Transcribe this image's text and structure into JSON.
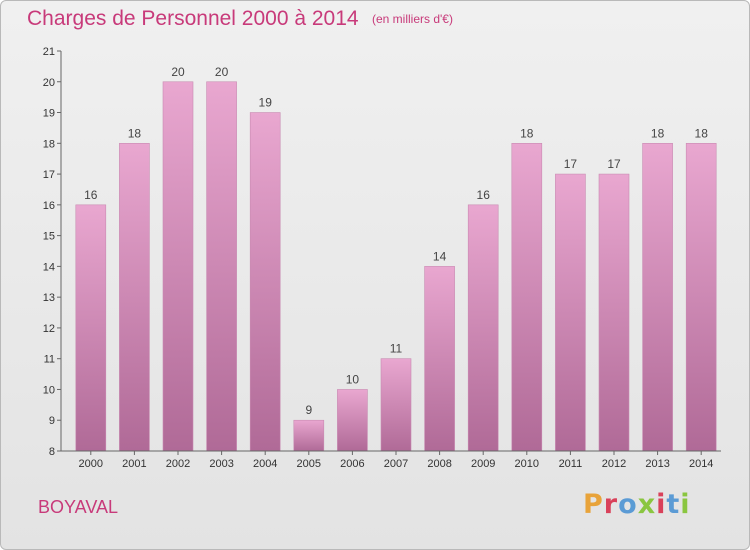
{
  "header": {
    "title": "Charges de Personnel 2000 à 2014",
    "subtitle": "(en milliers d'€)"
  },
  "footer": {
    "commune": "BOYAVAL",
    "brand": "Proxiti",
    "brand_colors": [
      "#e8a33a",
      "#d9415a",
      "#5b9bd5",
      "#8ac640",
      "#d9415a",
      "#5b9bd5",
      "#8ac640"
    ]
  },
  "colors": {
    "accent": "#c83a7a",
    "bar_top": "#e9a7d0",
    "bar_bottom": "#b06a97"
  },
  "chart_data": {
    "type": "bar",
    "categories": [
      "2000",
      "2001",
      "2002",
      "2003",
      "2004",
      "2005",
      "2006",
      "2007",
      "2008",
      "2009",
      "2010",
      "2011",
      "2012",
      "2013",
      "2014"
    ],
    "values": [
      16,
      18,
      20,
      20,
      19,
      9,
      10,
      11,
      14,
      16,
      18,
      17,
      17,
      18,
      18
    ],
    "title": "Charges de Personnel 2000 à 2014",
    "subtitle": "(en milliers d'€)",
    "ylim": [
      8,
      21
    ],
    "yticks": [
      8,
      9,
      10,
      11,
      12,
      13,
      14,
      15,
      16,
      17,
      18,
      19,
      20,
      21
    ],
    "grid": false,
    "legend": "none"
  }
}
